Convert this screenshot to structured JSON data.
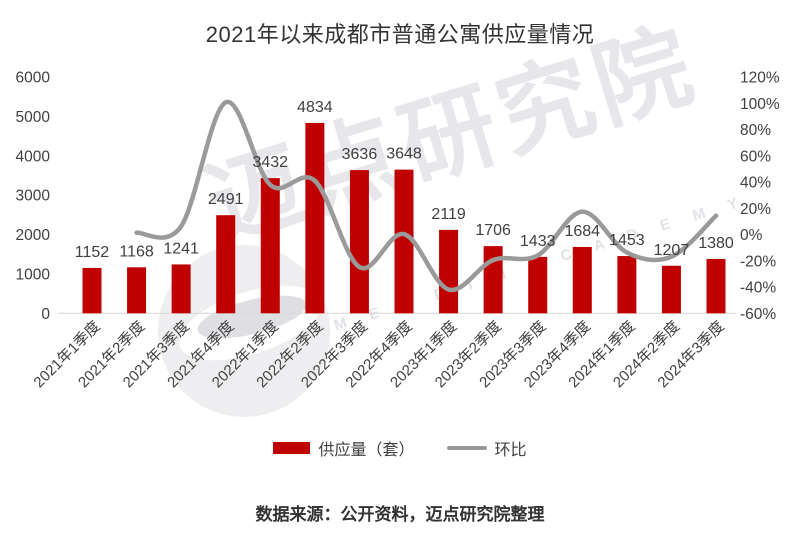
{
  "title": "2021年以来成都市普通公寓供应量情况",
  "source_note": "数据来源：公开资料，迈点研究院整理",
  "watermark": {
    "text": "迈点研究院",
    "subtext": "M E A D I N   A C A D E M Y"
  },
  "colors": {
    "bar": "#c00000",
    "line": "#9a9a9a",
    "axis_text": "#404040",
    "label_text": "#404040",
    "baseline": "#d9d9d9"
  },
  "legend": [
    {
      "label": "供应量（套）",
      "type": "bar",
      "color": "#c00000"
    },
    {
      "label": "环比",
      "type": "line",
      "color": "#9a9a9a"
    }
  ],
  "chart_data": {
    "type": "bar+line combo",
    "title": "2021年以来成都市普通公寓供应量情况",
    "categories": [
      "2021年1季度",
      "2021年2季度",
      "2021年3季度",
      "2021年4季度",
      "2022年1季度",
      "2022年2季度",
      "2022年3季度",
      "2022年4季度",
      "2023年1季度",
      "2023年2季度",
      "2023年3季度",
      "2023年4季度",
      "2024年1季度",
      "2024年2季度",
      "2024年3季度"
    ],
    "series": [
      {
        "name": "供应量（套）",
        "type": "bar",
        "axis": "left",
        "values": [
          1152,
          1168,
          1241,
          2491,
          3432,
          4834,
          3636,
          3648,
          2119,
          1706,
          1433,
          1684,
          1453,
          1207,
          1380
        ]
      },
      {
        "name": "环比",
        "type": "line",
        "axis": "right",
        "unit": "%",
        "values": [
          null,
          1.4,
          6.3,
          100.7,
          37.8,
          40.9,
          -24.8,
          0.3,
          -41.9,
          -19.5,
          -16.0,
          17.5,
          -13.7,
          -16.9,
          14.3
        ]
      }
    ],
    "left_axis": {
      "min": 0,
      "max": 6000,
      "step": 1000,
      "ticks": [
        "6000",
        "5000",
        "4000",
        "3000",
        "2000",
        "1000",
        "0"
      ]
    },
    "right_axis": {
      "min": -60,
      "max": 120,
      "step": 20,
      "ticks": [
        "120%",
        "100%",
        "80%",
        "60%",
        "40%",
        "20%",
        "0%",
        "-20%",
        "-40%",
        "-60%"
      ]
    },
    "grid": false,
    "data_labels": true,
    "legend_position": "bottom",
    "x_label_rotation": 45,
    "line_smooth": true
  }
}
